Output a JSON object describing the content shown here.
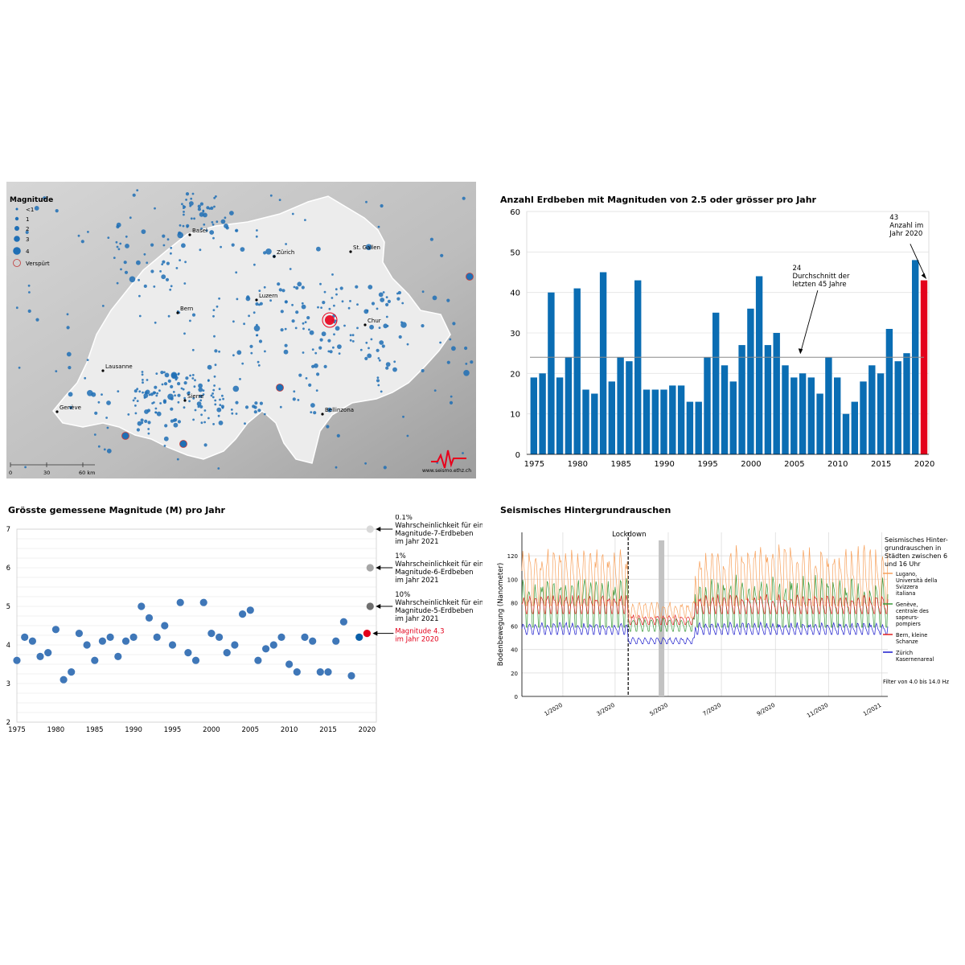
{
  "map": {
    "legend_title": "Magnitude",
    "legend_items": [
      "<1",
      "1",
      "2",
      "3",
      "4"
    ],
    "felt_label": "Verspürt",
    "cities": [
      {
        "name": "Basel"
      },
      {
        "name": "Zürich"
      },
      {
        "name": "St. Gallen"
      },
      {
        "name": "Luzern"
      },
      {
        "name": "Bern"
      },
      {
        "name": "Chur"
      },
      {
        "name": "Lausanne"
      },
      {
        "name": "Genève"
      },
      {
        "name": "Sierre"
      },
      {
        "name": "Bellinzona"
      }
    ],
    "scale_labels": [
      "0",
      "30",
      "60 km"
    ],
    "credit": "www.seismo.ethz.ch",
    "colors": {
      "quake": "#1f6fb5",
      "felt": "#e8001c",
      "country": "#ececec",
      "relief": "#a9a9a9"
    }
  },
  "chart_data": [
    {
      "type": "bar",
      "title": "Anzahl Erdbeben mit Magnituden von 2.5 oder grösser pro Jahr",
      "x": [
        1975,
        1976,
        1977,
        1978,
        1979,
        1980,
        1981,
        1982,
        1983,
        1984,
        1985,
        1986,
        1987,
        1988,
        1989,
        1990,
        1991,
        1992,
        1993,
        1994,
        1995,
        1996,
        1997,
        1998,
        1999,
        2000,
        2001,
        2002,
        2003,
        2004,
        2005,
        2006,
        2007,
        2008,
        2009,
        2010,
        2011,
        2012,
        2013,
        2014,
        2015,
        2016,
        2017,
        2018,
        2019,
        2020
      ],
      "values": [
        19,
        20,
        40,
        19,
        24,
        41,
        16,
        15,
        45,
        18,
        24,
        23,
        43,
        16,
        16,
        16,
        17,
        17,
        13,
        13,
        24,
        35,
        22,
        18,
        27,
        36,
        44,
        27,
        30,
        22,
        19,
        20,
        19,
        15,
        24,
        19,
        10,
        13,
        18,
        22,
        20,
        31,
        23,
        25,
        48,
        43
      ],
      "xticks": [
        1975,
        1980,
        1985,
        1990,
        1995,
        2000,
        2005,
        2010,
        2015,
        2020
      ],
      "yticks": [
        0,
        10,
        20,
        30,
        40,
        50,
        60
      ],
      "ylim": [
        0,
        60
      ],
      "average": 24,
      "annotations": {
        "avg_value": "24",
        "avg_text1": "Durchschnitt der",
        "avg_text2": "letzten 45 Jahre",
        "last_value": "43",
        "last_text1": "Anzahl im",
        "last_text2": "Jahr 2020"
      },
      "colors": {
        "bar": "#0a6db3",
        "highlight": "#e3001b"
      }
    },
    {
      "type": "scatter",
      "title": "Grösste gemessene Magnitude (M) pro Jahr",
      "x": [
        1975,
        1976,
        1977,
        1978,
        1979,
        1980,
        1981,
        1982,
        1983,
        1984,
        1985,
        1986,
        1987,
        1988,
        1989,
        1990,
        1991,
        1992,
        1993,
        1994,
        1995,
        1996,
        1997,
        1998,
        1999,
        2000,
        2001,
        2002,
        2003,
        2004,
        2005,
        2006,
        2007,
        2008,
        2009,
        2010,
        2011,
        2012,
        2013,
        2014,
        2015,
        2016,
        2017,
        2018,
        2019,
        2020
      ],
      "y": [
        3.6,
        4.2,
        4.1,
        3.7,
        3.8,
        4.4,
        3.1,
        3.3,
        4.3,
        4.0,
        3.6,
        4.1,
        4.2,
        3.7,
        4.1,
        4.2,
        5.0,
        4.7,
        4.2,
        4.5,
        4.0,
        5.1,
        3.8,
        3.6,
        5.1,
        4.3,
        4.2,
        3.8,
        4.0,
        4.8,
        4.9,
        3.6,
        3.9,
        4.0,
        4.2,
        3.5,
        3.3,
        4.2,
        4.1,
        3.3,
        3.3,
        4.1,
        4.6,
        3.2,
        4.2,
        4.3
      ],
      "xticks": [
        1975,
        1980,
        1985,
        1990,
        1995,
        2000,
        2005,
        2010,
        2015,
        2020
      ],
      "yticks": [
        2,
        3,
        4,
        5,
        6,
        7
      ],
      "ylim": [
        2,
        7
      ],
      "probabilities": [
        {
          "magnitude": 7,
          "lines": [
            "0.1%",
            "Wahrscheinlichkeit für ein",
            "Magnitude-7-Erdbeben",
            "im Jahr 2021"
          ],
          "color": "#d9d9d9"
        },
        {
          "magnitude": 6,
          "lines": [
            "1%",
            "Wahrscheinlichkeit für ein",
            "Magnitude-6-Erdbeben",
            "im Jahr 2021"
          ],
          "color": "#a6a6a6"
        },
        {
          "magnitude": 5,
          "lines": [
            "10%",
            "Wahrscheinlichkeit für ein",
            "Magnitude-5-Erdbeben",
            "im Jahr 2021"
          ],
          "color": "#6f6f6f"
        }
      ],
      "highlight": {
        "magnitude": 4.3,
        "lines": [
          "Magnitude 4.3",
          "im Jahr 2020"
        ],
        "color": "#e3001b"
      },
      "colors": {
        "point": "#3f77b8",
        "recent": "#0a5fa8"
      }
    },
    {
      "type": "line",
      "title": "Seismisches Hintergrundrauschen",
      "ylabel": "Bodenbewegung  (Nanometer)",
      "x_range": [
        "2019-11-15",
        "2021-01-08"
      ],
      "xticks": [
        "1/2020",
        "3/2020",
        "5/2020",
        "7/2020",
        "9/2020",
        "11/2020",
        "1/2021"
      ],
      "yticks": [
        0,
        20,
        40,
        60,
        80,
        100,
        120
      ],
      "ylim": [
        0,
        140
      ],
      "lockdown_label": "Lockdown",
      "legend_title": [
        "Seismisches Hinter-",
        "grundrauschen in",
        "Städten zwischen 6",
        "und 16 Uhr"
      ],
      "filter_text": "Filter von 4.0 bis 14.0 Hz",
      "series": [
        {
          "name": [
            "Lugano,",
            "Università della",
            "Svizzera",
            "italiana"
          ],
          "color": "#f7a15c",
          "approx": "daily peaks 95–135 (before Mar 2020 and Jun–Sep 2020), ~70 during lockdown"
        },
        {
          "name": [
            "Genève,",
            "centrale des",
            "sapeurs-",
            "pompiers"
          ],
          "color": "#3a9a3a",
          "approx": "daily values 55–110, ~55–65 during lockdown"
        },
        {
          "name": [
            "Bern, kleine",
            "Schanze"
          ],
          "color": "#e02020",
          "approx": "daily values 70–88, ~62–72 during lockdown"
        },
        {
          "name": [
            "Zürich",
            "Kasernenareal"
          ],
          "color": "#1a1acc",
          "approx": "daily values 52–65, ~45–50 during lockdown"
        }
      ]
    }
  ]
}
